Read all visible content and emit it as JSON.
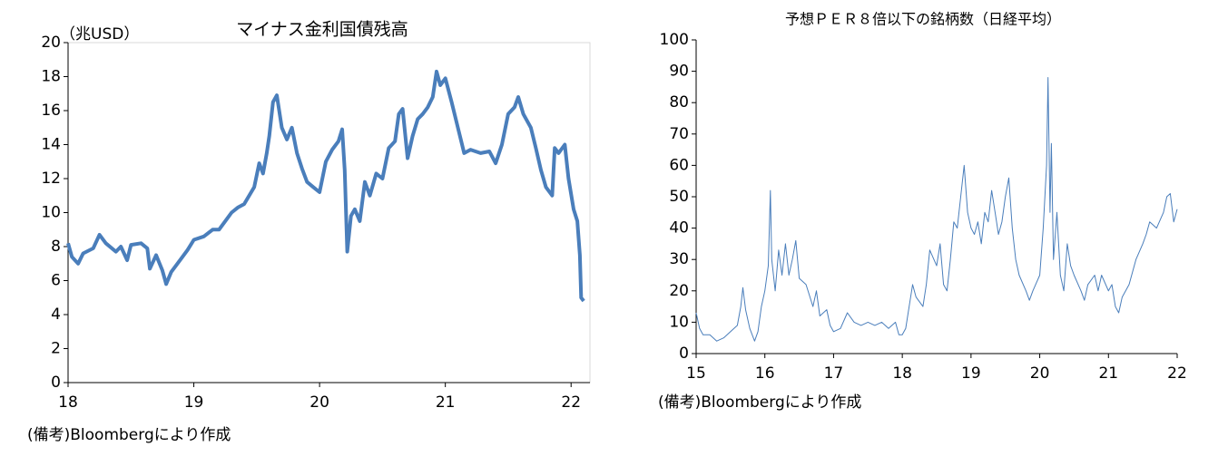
{
  "chart_data": [
    {
      "type": "line",
      "title": "マイナス金利国債残高",
      "y_label": "（兆USD）",
      "note": "(備考)Bloombergにより作成",
      "color": "#4a7ebb",
      "line_width": 4,
      "frame": true,
      "xlim": [
        18,
        22.15
      ],
      "xticks": [
        18,
        19,
        20,
        21,
        22
      ],
      "ylim": [
        0,
        20
      ],
      "yticks": [
        0,
        2,
        4,
        6,
        8,
        10,
        12,
        14,
        16,
        18,
        20
      ],
      "x": [
        18.0,
        18.03,
        18.08,
        18.12,
        18.2,
        18.25,
        18.3,
        18.38,
        18.42,
        18.47,
        18.5,
        18.58,
        18.63,
        18.65,
        18.7,
        18.75,
        18.78,
        18.82,
        18.88,
        18.95,
        19.0,
        19.08,
        19.15,
        19.2,
        19.25,
        19.3,
        19.35,
        19.4,
        19.48,
        19.52,
        19.55,
        19.58,
        19.6,
        19.63,
        19.66,
        19.7,
        19.74,
        19.78,
        19.82,
        19.86,
        19.9,
        19.95,
        20.0,
        20.05,
        20.1,
        20.15,
        20.18,
        20.2,
        20.22,
        20.25,
        20.28,
        20.32,
        20.36,
        20.4,
        20.45,
        20.5,
        20.55,
        20.6,
        20.63,
        20.66,
        20.7,
        20.74,
        20.78,
        20.82,
        20.86,
        20.9,
        20.93,
        20.96,
        21.0,
        21.05,
        21.1,
        21.15,
        21.2,
        21.28,
        21.35,
        21.4,
        21.45,
        21.5,
        21.55,
        21.58,
        21.62,
        21.68,
        21.72,
        21.76,
        21.8,
        21.85,
        21.87,
        21.9,
        21.95,
        21.98,
        22.02,
        22.05,
        22.07,
        22.08,
        22.1
      ],
      "values": [
        8.2,
        7.4,
        7.0,
        7.6,
        7.9,
        8.7,
        8.2,
        7.7,
        8.0,
        7.2,
        8.1,
        8.2,
        7.9,
        6.7,
        7.5,
        6.6,
        5.8,
        6.5,
        7.1,
        7.8,
        8.4,
        8.6,
        9.0,
        9.0,
        9.5,
        10.0,
        10.3,
        10.5,
        11.5,
        12.9,
        12.3,
        13.5,
        14.5,
        16.5,
        16.9,
        15.0,
        14.3,
        15.0,
        13.5,
        12.6,
        11.8,
        11.5,
        11.2,
        13.0,
        13.7,
        14.2,
        14.9,
        12.5,
        7.7,
        9.8,
        10.2,
        9.5,
        11.8,
        11.0,
        12.3,
        12.0,
        13.8,
        14.2,
        15.8,
        16.1,
        13.2,
        14.5,
        15.5,
        15.8,
        16.2,
        16.8,
        18.3,
        17.5,
        17.9,
        16.5,
        15.0,
        13.5,
        13.7,
        13.5,
        13.6,
        12.9,
        14.0,
        15.8,
        16.2,
        16.8,
        15.8,
        15.0,
        13.8,
        12.5,
        11.5,
        11.0,
        13.8,
        13.5,
        14.0,
        12.0,
        10.2,
        9.5,
        7.5,
        5.0,
        4.8
      ]
    },
    {
      "type": "line",
      "title": "予想ＰＥＲ８倍以下の銘柄数（日経平均）",
      "note": "(備考)Bloombergにより作成",
      "color": "#4a7ebb",
      "line_width": 1,
      "frame": false,
      "xlim": [
        15,
        22
      ],
      "xticks": [
        15,
        16,
        17,
        18,
        19,
        20,
        21,
        22
      ],
      "ylim": [
        0,
        100
      ],
      "yticks": [
        0,
        10,
        20,
        30,
        40,
        50,
        60,
        70,
        80,
        90,
        100
      ],
      "x": [
        15.0,
        15.05,
        15.1,
        15.2,
        15.3,
        15.4,
        15.5,
        15.6,
        15.65,
        15.68,
        15.72,
        15.78,
        15.85,
        15.9,
        15.95,
        16.0,
        16.05,
        16.08,
        16.1,
        16.15,
        16.2,
        16.25,
        16.3,
        16.35,
        16.4,
        16.45,
        16.5,
        16.6,
        16.7,
        16.75,
        16.8,
        16.9,
        16.95,
        17.0,
        17.1,
        17.2,
        17.3,
        17.4,
        17.5,
        17.6,
        17.7,
        17.8,
        17.9,
        17.95,
        18.0,
        18.05,
        18.1,
        18.15,
        18.2,
        18.3,
        18.35,
        18.4,
        18.5,
        18.55,
        18.6,
        18.65,
        18.7,
        18.75,
        18.8,
        18.85,
        18.9,
        18.95,
        19.0,
        19.05,
        19.1,
        19.15,
        19.2,
        19.25,
        19.3,
        19.35,
        19.4,
        19.45,
        19.5,
        19.55,
        19.6,
        19.65,
        19.7,
        19.8,
        19.85,
        19.9,
        20.0,
        20.05,
        20.1,
        20.12,
        20.15,
        20.17,
        20.2,
        20.25,
        20.3,
        20.35,
        20.4,
        20.45,
        20.5,
        20.6,
        20.65,
        20.7,
        20.8,
        20.85,
        20.9,
        21.0,
        21.05,
        21.1,
        21.15,
        21.2,
        21.3,
        21.4,
        21.5,
        21.55,
        21.6,
        21.7,
        21.8,
        21.85,
        21.9,
        21.95,
        22.0
      ],
      "values": [
        13,
        8,
        6,
        6,
        4,
        5,
        7,
        9,
        15,
        21,
        14,
        8,
        4,
        7,
        15,
        20,
        28,
        52,
        30,
        20,
        33,
        25,
        35,
        25,
        30,
        36,
        24,
        22,
        15,
        20,
        12,
        14,
        9,
        7,
        8,
        13,
        10,
        9,
        10,
        9,
        10,
        8,
        10,
        6,
        6,
        8,
        15,
        22,
        18,
        15,
        22,
        33,
        28,
        35,
        22,
        20,
        30,
        42,
        40,
        50,
        60,
        45,
        40,
        38,
        42,
        35,
        45,
        42,
        52,
        45,
        38,
        42,
        50,
        56,
        40,
        30,
        25,
        20,
        17,
        20,
        25,
        40,
        60,
        88,
        45,
        67,
        30,
        45,
        25,
        20,
        35,
        28,
        25,
        20,
        17,
        22,
        25,
        20,
        25,
        20,
        22,
        15,
        13,
        18,
        22,
        30,
        35,
        38,
        42,
        40,
        45,
        50,
        51,
        42,
        46
      ]
    }
  ]
}
